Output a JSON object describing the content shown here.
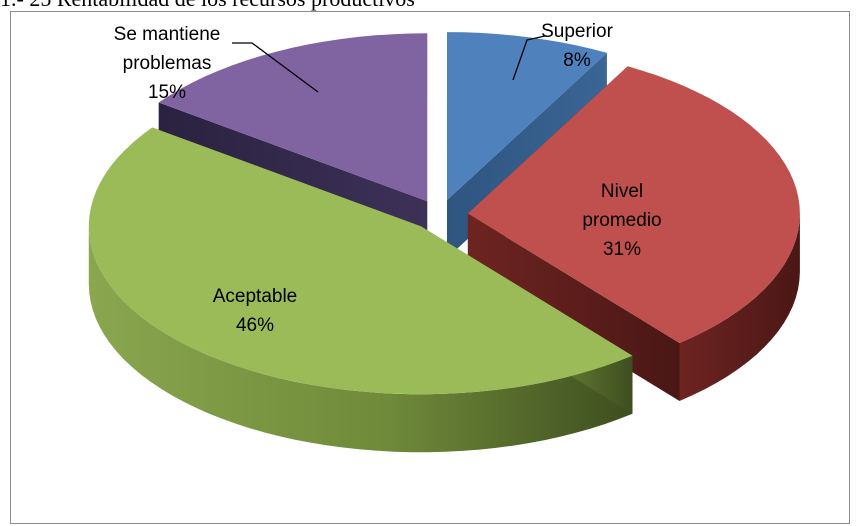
{
  "caption": "1.- 25 Rentabilidad de los recursos productivos",
  "chart_data": {
    "type": "pie",
    "style": "3d-exploded",
    "title": "",
    "legend": "none",
    "slices": [
      {
        "name_lines": [
          "Superior"
        ],
        "percent_label": "8%",
        "value": 8,
        "color": "#4f81bd"
      },
      {
        "name_lines": [
          "Nivel",
          "promedio"
        ],
        "percent_label": "31%",
        "value": 31,
        "color": "#c0504d"
      },
      {
        "name_lines": [
          "Aceptable"
        ],
        "percent_label": "46%",
        "value": 46,
        "color": "#9bbb59"
      },
      {
        "name_lines": [
          "Se mantiene",
          "problemas"
        ],
        "percent_label": "15%",
        "value": 15,
        "color": "#8064a2"
      }
    ]
  }
}
